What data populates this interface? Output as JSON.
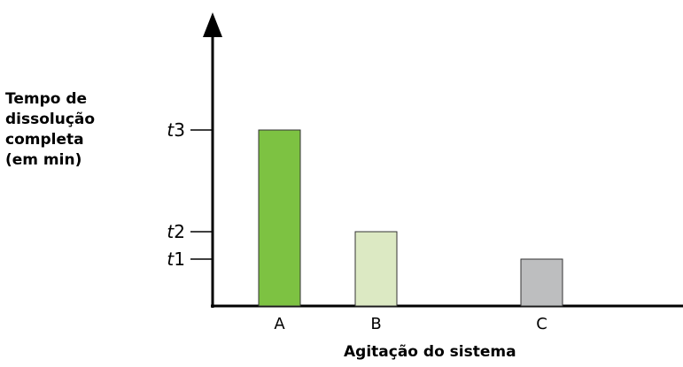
{
  "chart_data": {
    "type": "bar",
    "categories": [
      "A",
      "B",
      "C"
    ],
    "values": [
      "t3",
      "t2",
      "t1"
    ],
    "ytick_labels": [
      {
        "prefix": "t",
        "index": "3"
      },
      {
        "prefix": "t",
        "index": "2"
      },
      {
        "prefix": "t",
        "index": "1"
      }
    ],
    "ylabel_lines": [
      "Tempo de",
      "dissolução",
      "completa",
      "(em min)"
    ],
    "xlabel": "Agitação do sistema",
    "bar_colors": [
      "#7dc242",
      "#dce9c3",
      "#bdbebf"
    ],
    "bar_stroke": "#333333",
    "grid": false
  }
}
